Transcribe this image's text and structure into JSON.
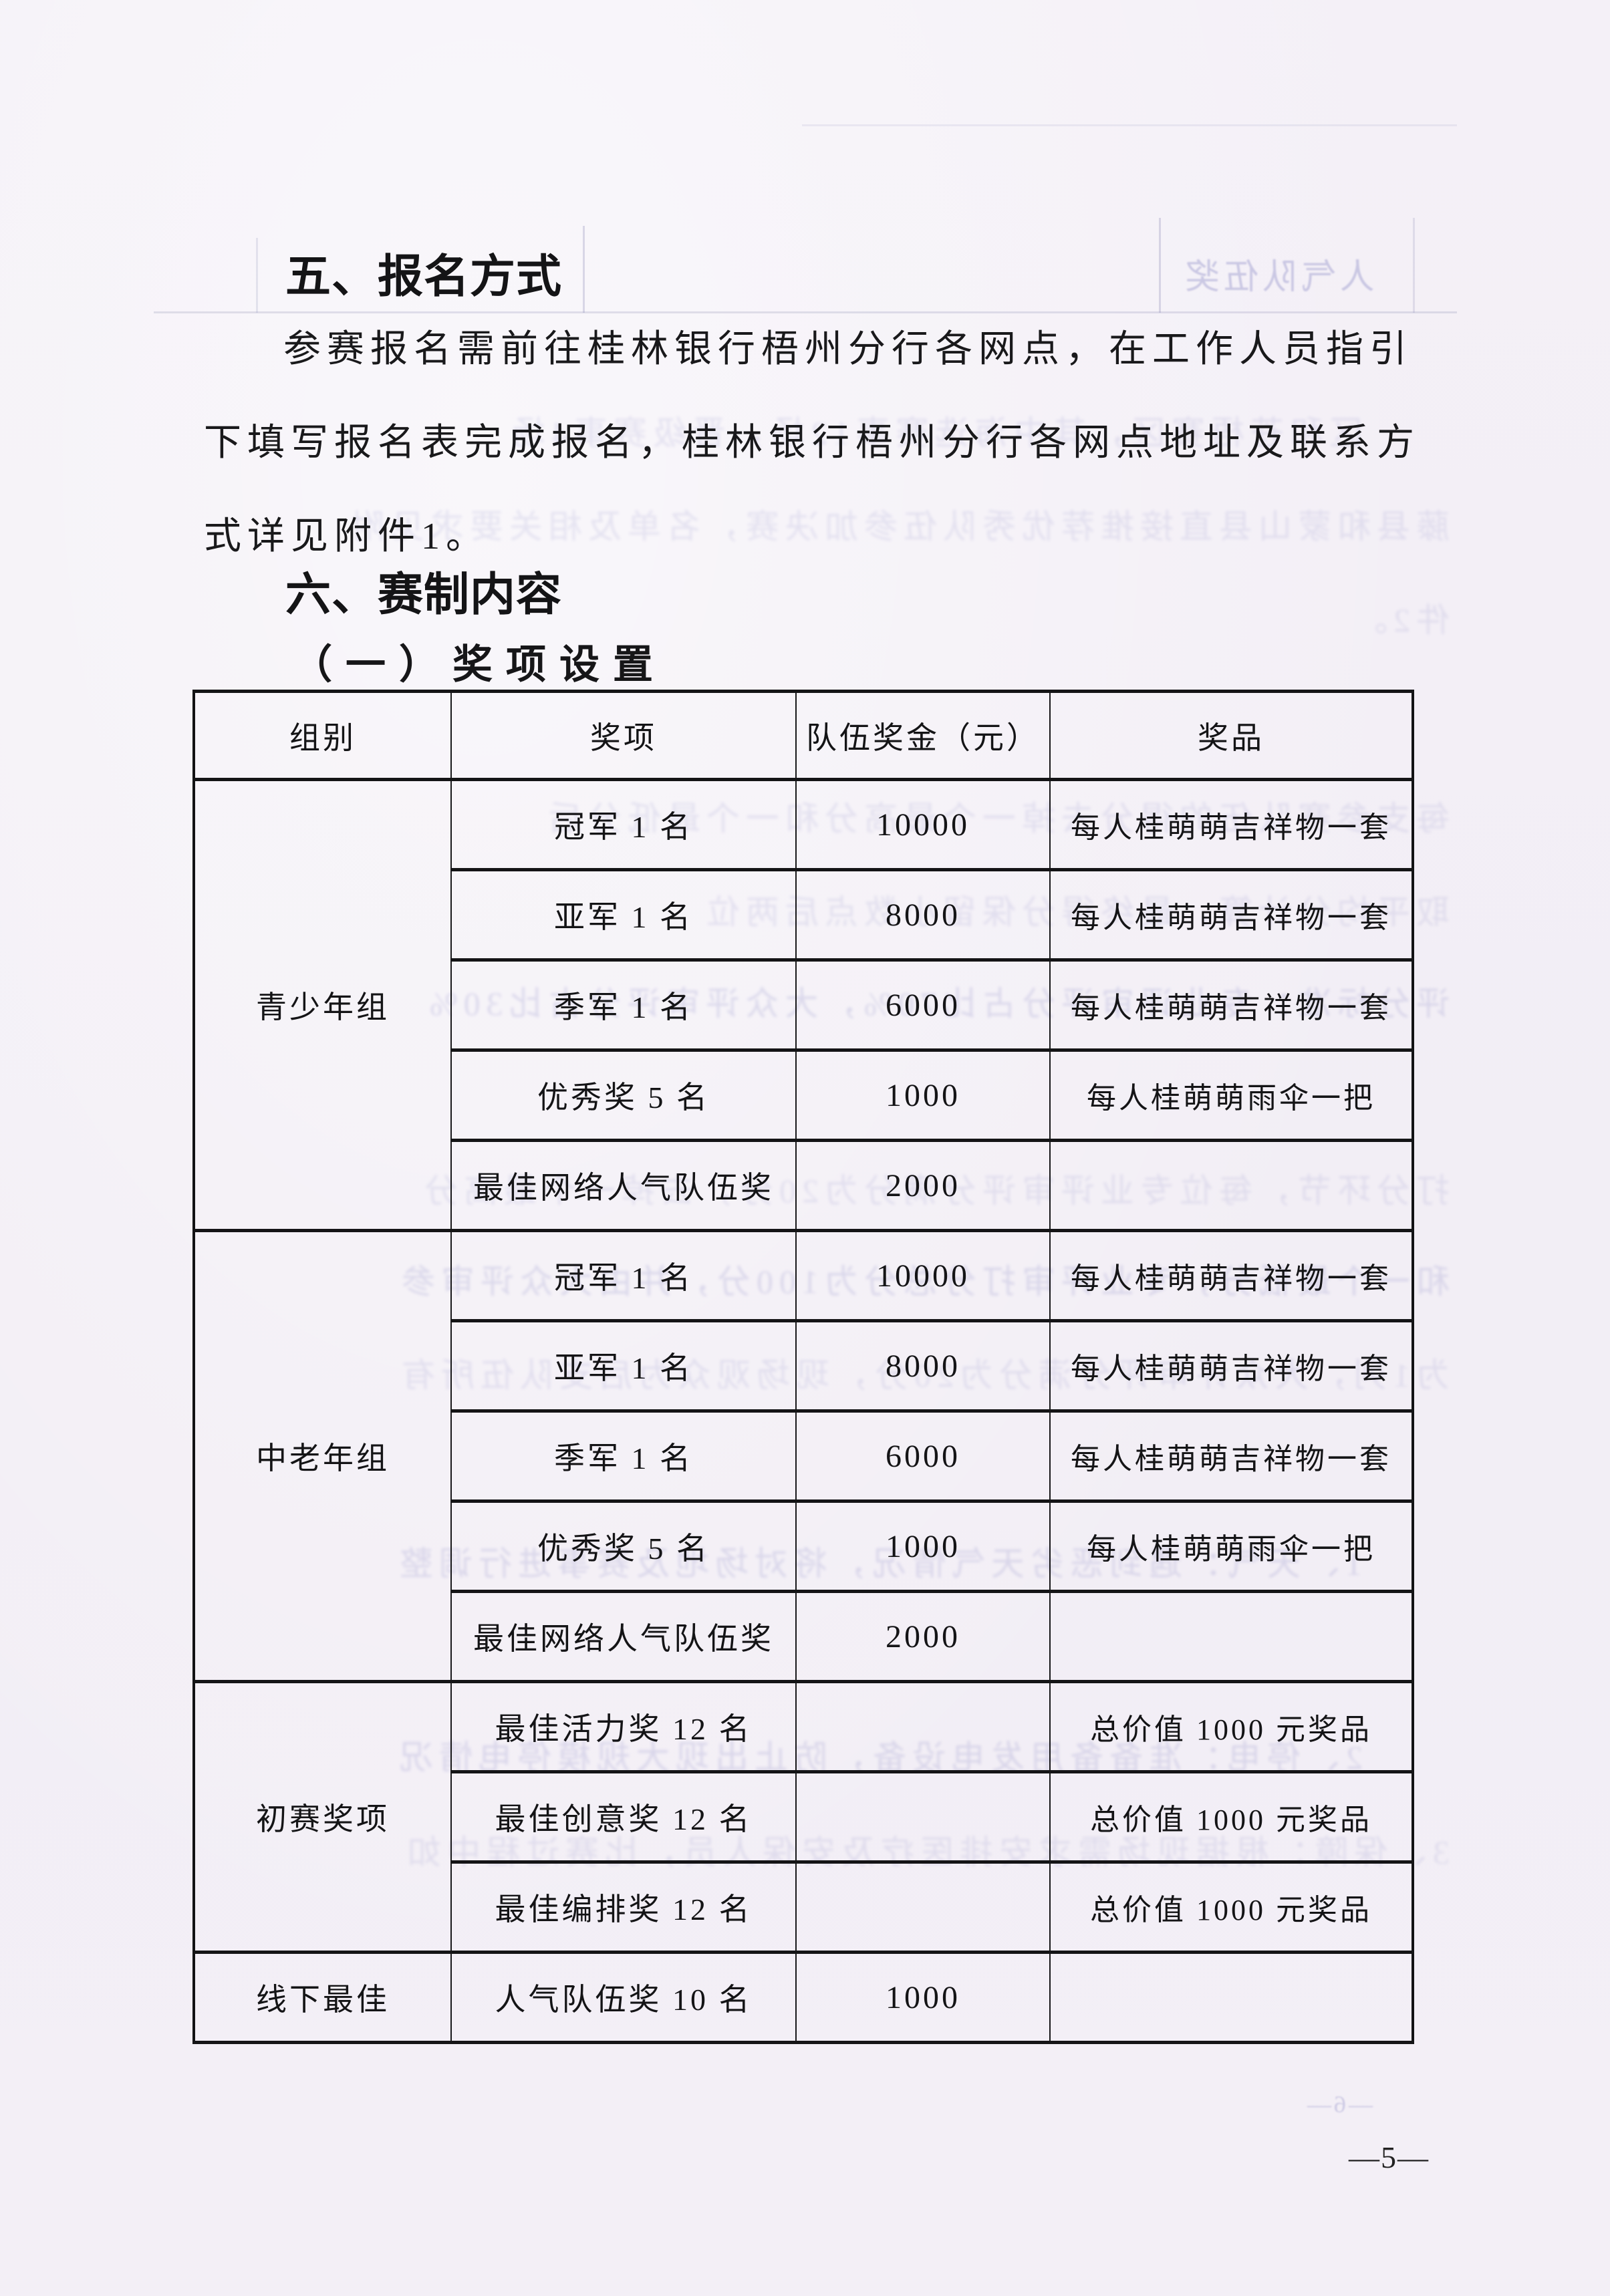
{
  "document": {
    "section_5": {
      "heading": "五、报名方式",
      "body_lines": [
        "参赛报名需前往桂林银行梧州分行各网点，在工作人员指引",
        "下填写报名表完成报名，桂林银行梧州分行各网点地址及联系方",
        "式详见附件1。"
      ]
    },
    "section_6": {
      "heading": "六、赛制内容",
      "subheading": "（一）奖项设置"
    },
    "page_number": "—5—"
  },
  "table": {
    "headers": [
      "组别",
      "奖项",
      "队伍奖金（元）",
      "奖品"
    ],
    "groups": [
      {
        "name": "青少年组",
        "rows": [
          {
            "award": "冠军 1 名",
            "money": "10000",
            "prize": "每人桂萌萌吉祥物一套"
          },
          {
            "award": "亚军 1 名",
            "money": "8000",
            "prize": "每人桂萌萌吉祥物一套"
          },
          {
            "award": "季军 1 名",
            "money": "6000",
            "prize": "每人桂萌萌吉祥物一套"
          },
          {
            "award": "优秀奖 5 名",
            "money": "1000",
            "prize": "每人桂萌萌雨伞一把"
          },
          {
            "award": "最佳网络人气队伍奖",
            "money": "2000",
            "prize": ""
          }
        ]
      },
      {
        "name": "中老年组",
        "rows": [
          {
            "award": "冠军 1 名",
            "money": "10000",
            "prize": "每人桂萌萌吉祥物一套"
          },
          {
            "award": "亚军 1 名",
            "money": "8000",
            "prize": "每人桂萌萌吉祥物一套"
          },
          {
            "award": "季军 1 名",
            "money": "6000",
            "prize": "每人桂萌萌吉祥物一套"
          },
          {
            "award": "优秀奖 5 名",
            "money": "1000",
            "prize": "每人桂萌萌雨伞一把"
          },
          {
            "award": "最佳网络人气队伍奖",
            "money": "2000",
            "prize": ""
          }
        ]
      },
      {
        "name": "初赛奖项",
        "rows": [
          {
            "award": "最佳活力奖 12 名",
            "money": "",
            "prize": "总价值 1000 元奖品"
          },
          {
            "award": "最佳创意奖 12 名",
            "money": "",
            "prize": "总价值 1000 元奖品"
          },
          {
            "award": "最佳编排奖 12 名",
            "money": "",
            "prize": "总价值 1000 元奖品"
          }
        ]
      },
      {
        "name": "线下最佳",
        "rows": [
          {
            "award": "人气队伍奖 10 名",
            "money": "1000",
            "prize": ""
          }
        ]
      }
    ]
  },
  "bleed_through": {
    "table_cell_text": "人气队伍奖",
    "back_page_number": "—6—",
    "lines": [
      "区和苍梧赛区，其中海选赛事12场，晋级赛事4场",
      "藤县和蒙山县直接推荐优秀队伍参加决赛，名单及相关要求见附",
      "件2。",
      "每支参赛队伍的得分去掉一个最高分和一个最低分后",
      "取平均分计算，最终得分保留小数点后两位",
      "评分标准：专业评审评分占比70%，大众评审评分占比30%",
      "打分环节，每位专业评审评分满分为20分，去掉一个最高分",
      "和一个最低分，专业评审打分总分为100分，并由大众评审参",
      "为1列，大众评审评分满分为20分，现场观众为后支队伍所有",
      "1、天气：遇到恶劣天气情况，将对场地及赛事进行调整",
      "2、停电：准备备用发电设备，防止出现大规模停电情况",
      "3、保障：根据现场需求安排医疗及安保人员，比赛过程中如"
    ]
  },
  "colors": {
    "paper": "#f3eff6",
    "ink": "#141416",
    "bleed": "#5c5cb0"
  }
}
